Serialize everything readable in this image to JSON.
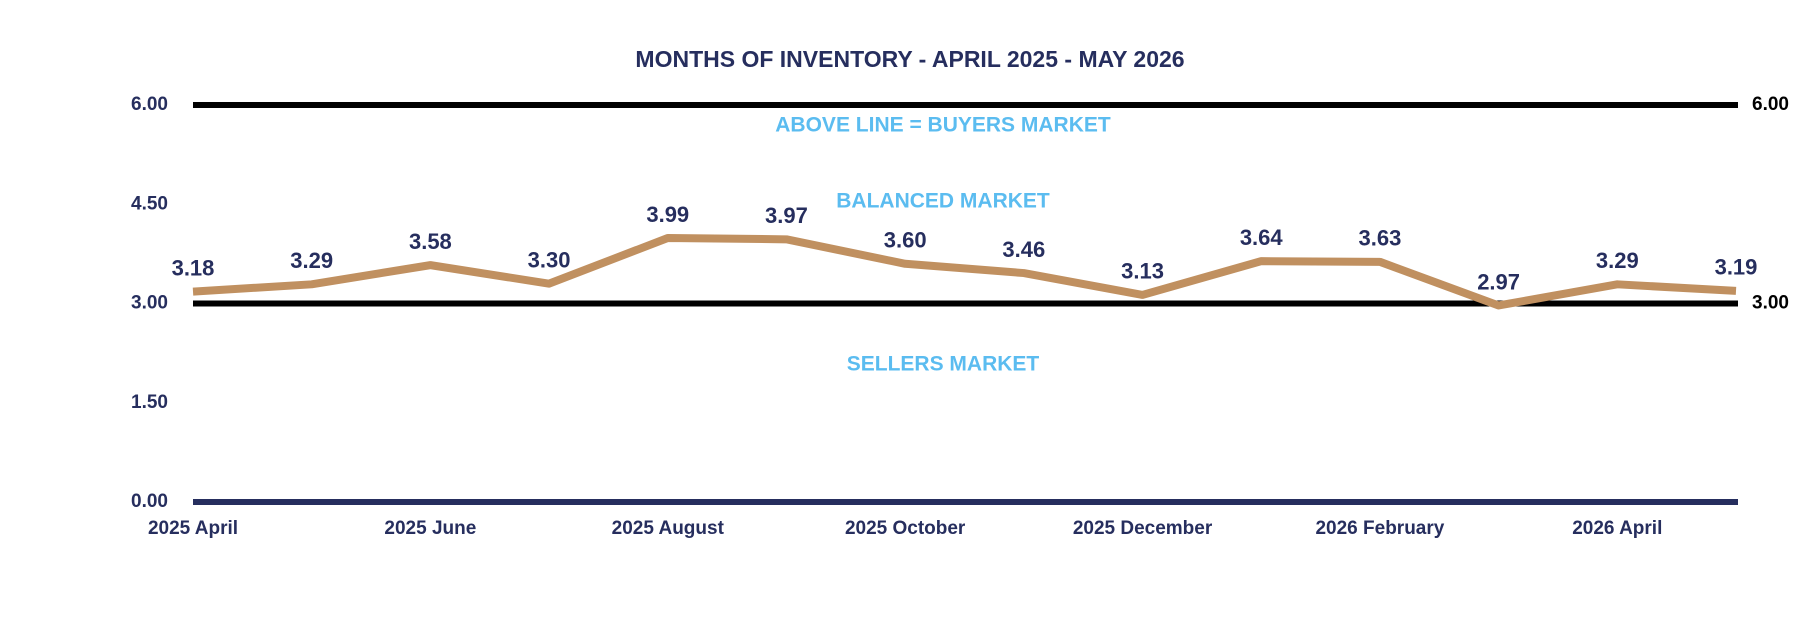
{
  "chart_data": {
    "type": "line",
    "title": "MONTHS OF INVENTORY - APRIL 2025 - MAY 2026",
    "categories": [
      "2025 April",
      null,
      "2025 June",
      null,
      "2025 August",
      null,
      "2025 October",
      null,
      "2025 December",
      null,
      "2026 February",
      null,
      "2026 April",
      null
    ],
    "series": [
      {
        "name": "Months of Inventory",
        "color": "#c09060",
        "values": [
          3.18,
          3.29,
          3.58,
          3.3,
          3.99,
          3.97,
          3.6,
          3.46,
          3.13,
          3.64,
          3.63,
          2.97,
          3.29,
          3.19
        ],
        "value_labels": [
          "3.18",
          "3.29",
          "3.58",
          "3.30",
          "3.99",
          "3.97",
          "3.60",
          "3.46",
          "3.13",
          "3.64",
          "3.63",
          "2.97",
          "3.29",
          "3.19"
        ]
      }
    ],
    "ylim": [
      0,
      6
    ],
    "yticks": [
      {
        "value": 0,
        "label": "0.00"
      },
      {
        "value": 1.5,
        "label": "1.50"
      },
      {
        "value": 3,
        "label": "3.00"
      },
      {
        "value": 4.5,
        "label": "4.50"
      },
      {
        "value": 6,
        "label": "6.00"
      }
    ],
    "reference_lines": [
      {
        "value": 6,
        "label": "6.00",
        "color": "#000000"
      },
      {
        "value": 3,
        "label": "3.00",
        "color": "#000000"
      }
    ],
    "axis_color": "#262e5e",
    "annotations": [
      "ABOVE LINE = BUYERS MARKET",
      "BALANCED MARKET",
      "SELLERS MARKET"
    ]
  }
}
